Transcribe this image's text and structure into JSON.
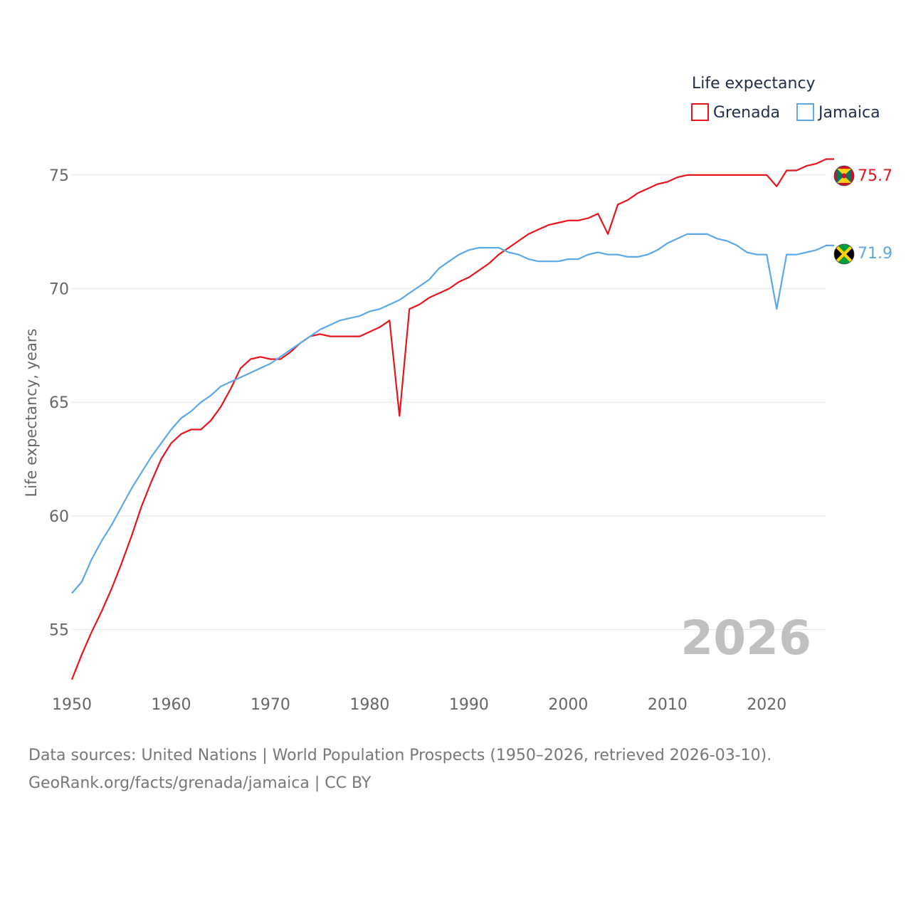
{
  "legend": {
    "title": "Life expectancy",
    "items": [
      {
        "label": "Grenada",
        "color": "#e8141c"
      },
      {
        "label": "Jamaica",
        "color": "#5aa8e8"
      }
    ]
  },
  "highlight_year": "2026",
  "end_labels": {
    "grenada": "75.7",
    "jamaica": "71.9"
  },
  "source": {
    "line1": "Data sources: United Nations | World Population Prospects (1950–2026, retrieved 2026-03-10).",
    "line2": "GeoRank.org/facts/grenada/jamaica | CC BY"
  },
  "chart_data": {
    "type": "line",
    "title": "Life expectancy",
    "xlabel": "",
    "ylabel": "Life expectancy, years",
    "xlim": [
      1950,
      2026
    ],
    "ylim": [
      52.7,
      76.5
    ],
    "xticks": [
      1950,
      1960,
      1970,
      1980,
      1990,
      2000,
      2010,
      2020
    ],
    "yticks": [
      55,
      60,
      65,
      70,
      75
    ],
    "grid": true,
    "x": [
      1950,
      1951,
      1952,
      1953,
      1954,
      1955,
      1956,
      1957,
      1958,
      1959,
      1960,
      1961,
      1962,
      1963,
      1964,
      1965,
      1966,
      1967,
      1968,
      1969,
      1970,
      1971,
      1972,
      1973,
      1974,
      1975,
      1976,
      1977,
      1978,
      1979,
      1980,
      1981,
      1982,
      1983,
      1984,
      1985,
      1986,
      1987,
      1988,
      1989,
      1990,
      1991,
      1992,
      1993,
      1994,
      1995,
      1996,
      1997,
      1998,
      1999,
      2000,
      2001,
      2002,
      2003,
      2004,
      2005,
      2006,
      2007,
      2008,
      2009,
      2010,
      2011,
      2012,
      2013,
      2014,
      2015,
      2016,
      2017,
      2018,
      2019,
      2020,
      2021,
      2022,
      2023,
      2024,
      2025,
      2026
    ],
    "series": [
      {
        "name": "Grenada",
        "color": "#e8141c",
        "values": [
          52.8,
          53.9,
          54.9,
          55.8,
          56.8,
          57.9,
          59.1,
          60.4,
          61.5,
          62.5,
          63.2,
          63.6,
          63.8,
          63.8,
          64.2,
          64.8,
          65.6,
          66.5,
          66.9,
          67.0,
          66.9,
          66.9,
          67.2,
          67.6,
          67.9,
          68.0,
          67.9,
          67.9,
          67.9,
          67.9,
          68.1,
          68.3,
          68.6,
          64.4,
          69.1,
          69.3,
          69.6,
          69.8,
          70.0,
          70.3,
          70.5,
          70.8,
          71.1,
          71.5,
          71.8,
          72.1,
          72.4,
          72.6,
          72.8,
          72.9,
          73.0,
          73.0,
          73.1,
          73.3,
          72.4,
          73.7,
          73.9,
          74.2,
          74.4,
          74.6,
          74.7,
          74.9,
          75.0,
          75.0,
          75.0,
          75.0,
          75.0,
          75.0,
          75.0,
          75.0,
          75.0,
          74.5,
          75.2,
          75.2,
          75.4,
          75.5,
          75.7
        ]
      },
      {
        "name": "Jamaica",
        "color": "#5aa8e8",
        "values": [
          56.6,
          57.1,
          58.1,
          58.9,
          59.6,
          60.4,
          61.2,
          61.9,
          62.6,
          63.2,
          63.8,
          64.3,
          64.6,
          65.0,
          65.3,
          65.7,
          65.9,
          66.1,
          66.3,
          66.5,
          66.7,
          67.0,
          67.3,
          67.6,
          67.9,
          68.2,
          68.4,
          68.6,
          68.7,
          68.8,
          69.0,
          69.1,
          69.3,
          69.5,
          69.8,
          70.1,
          70.4,
          70.9,
          71.2,
          71.5,
          71.7,
          71.8,
          71.8,
          71.8,
          71.6,
          71.5,
          71.3,
          71.2,
          71.2,
          71.2,
          71.3,
          71.3,
          71.5,
          71.6,
          71.5,
          71.5,
          71.4,
          71.4,
          71.5,
          71.7,
          72.0,
          72.2,
          72.4,
          72.4,
          72.4,
          72.2,
          72.1,
          71.9,
          71.6,
          71.5,
          71.5,
          69.1,
          71.5,
          71.5,
          71.6,
          71.7,
          71.9
        ]
      }
    ]
  }
}
